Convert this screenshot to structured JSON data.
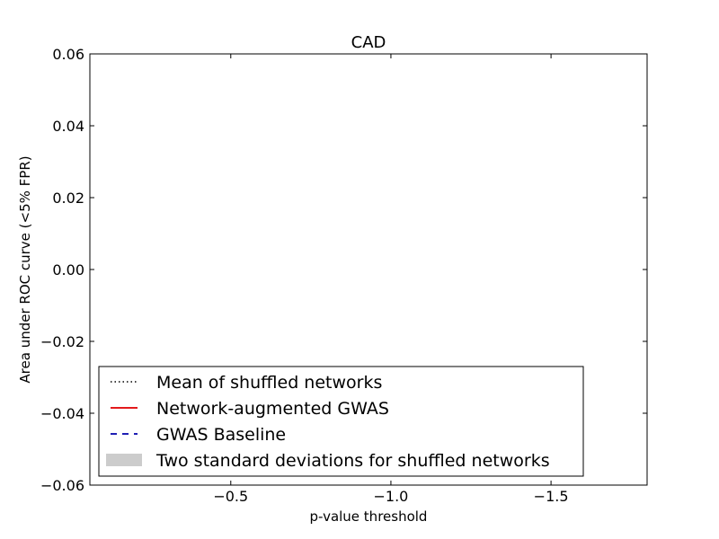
{
  "chart_data": {
    "type": "line",
    "title": "CAD",
    "xlabel": "p-value threshold",
    "ylabel": "Area under ROC curve (<5% FPR)",
    "xlim": [
      -0.06,
      -1.8
    ],
    "ylim": [
      -0.06,
      0.06
    ],
    "x_ticks": [
      {
        "value": -0.5,
        "label": "−0.5"
      },
      {
        "value": -1.0,
        "label": "−1.0"
      },
      {
        "value": -1.5,
        "label": "−1.5"
      }
    ],
    "y_ticks": [
      {
        "value": 0.06,
        "label": "0.06"
      },
      {
        "value": 0.04,
        "label": "0.04"
      },
      {
        "value": 0.02,
        "label": "0.02"
      },
      {
        "value": 0.0,
        "label": "0.00"
      },
      {
        "value": -0.02,
        "label": "−0.02"
      },
      {
        "value": -0.04,
        "label": "−0.04"
      },
      {
        "value": -0.06,
        "label": "−0.06"
      }
    ],
    "grid": false,
    "legend_position": "lower-left",
    "legend": [
      {
        "label": "Mean of shuffled networks",
        "style": "dotted",
        "color": "#000000"
      },
      {
        "label": "Network-augmented GWAS",
        "style": "solid",
        "color": "#e31a1c"
      },
      {
        "label": "GWAS Baseline",
        "style": "dashed",
        "color": "#1f1fb4"
      },
      {
        "label": "Two standard deviations for shuffled networks",
        "style": "band",
        "color": "#cccccc"
      }
    ],
    "series": []
  }
}
